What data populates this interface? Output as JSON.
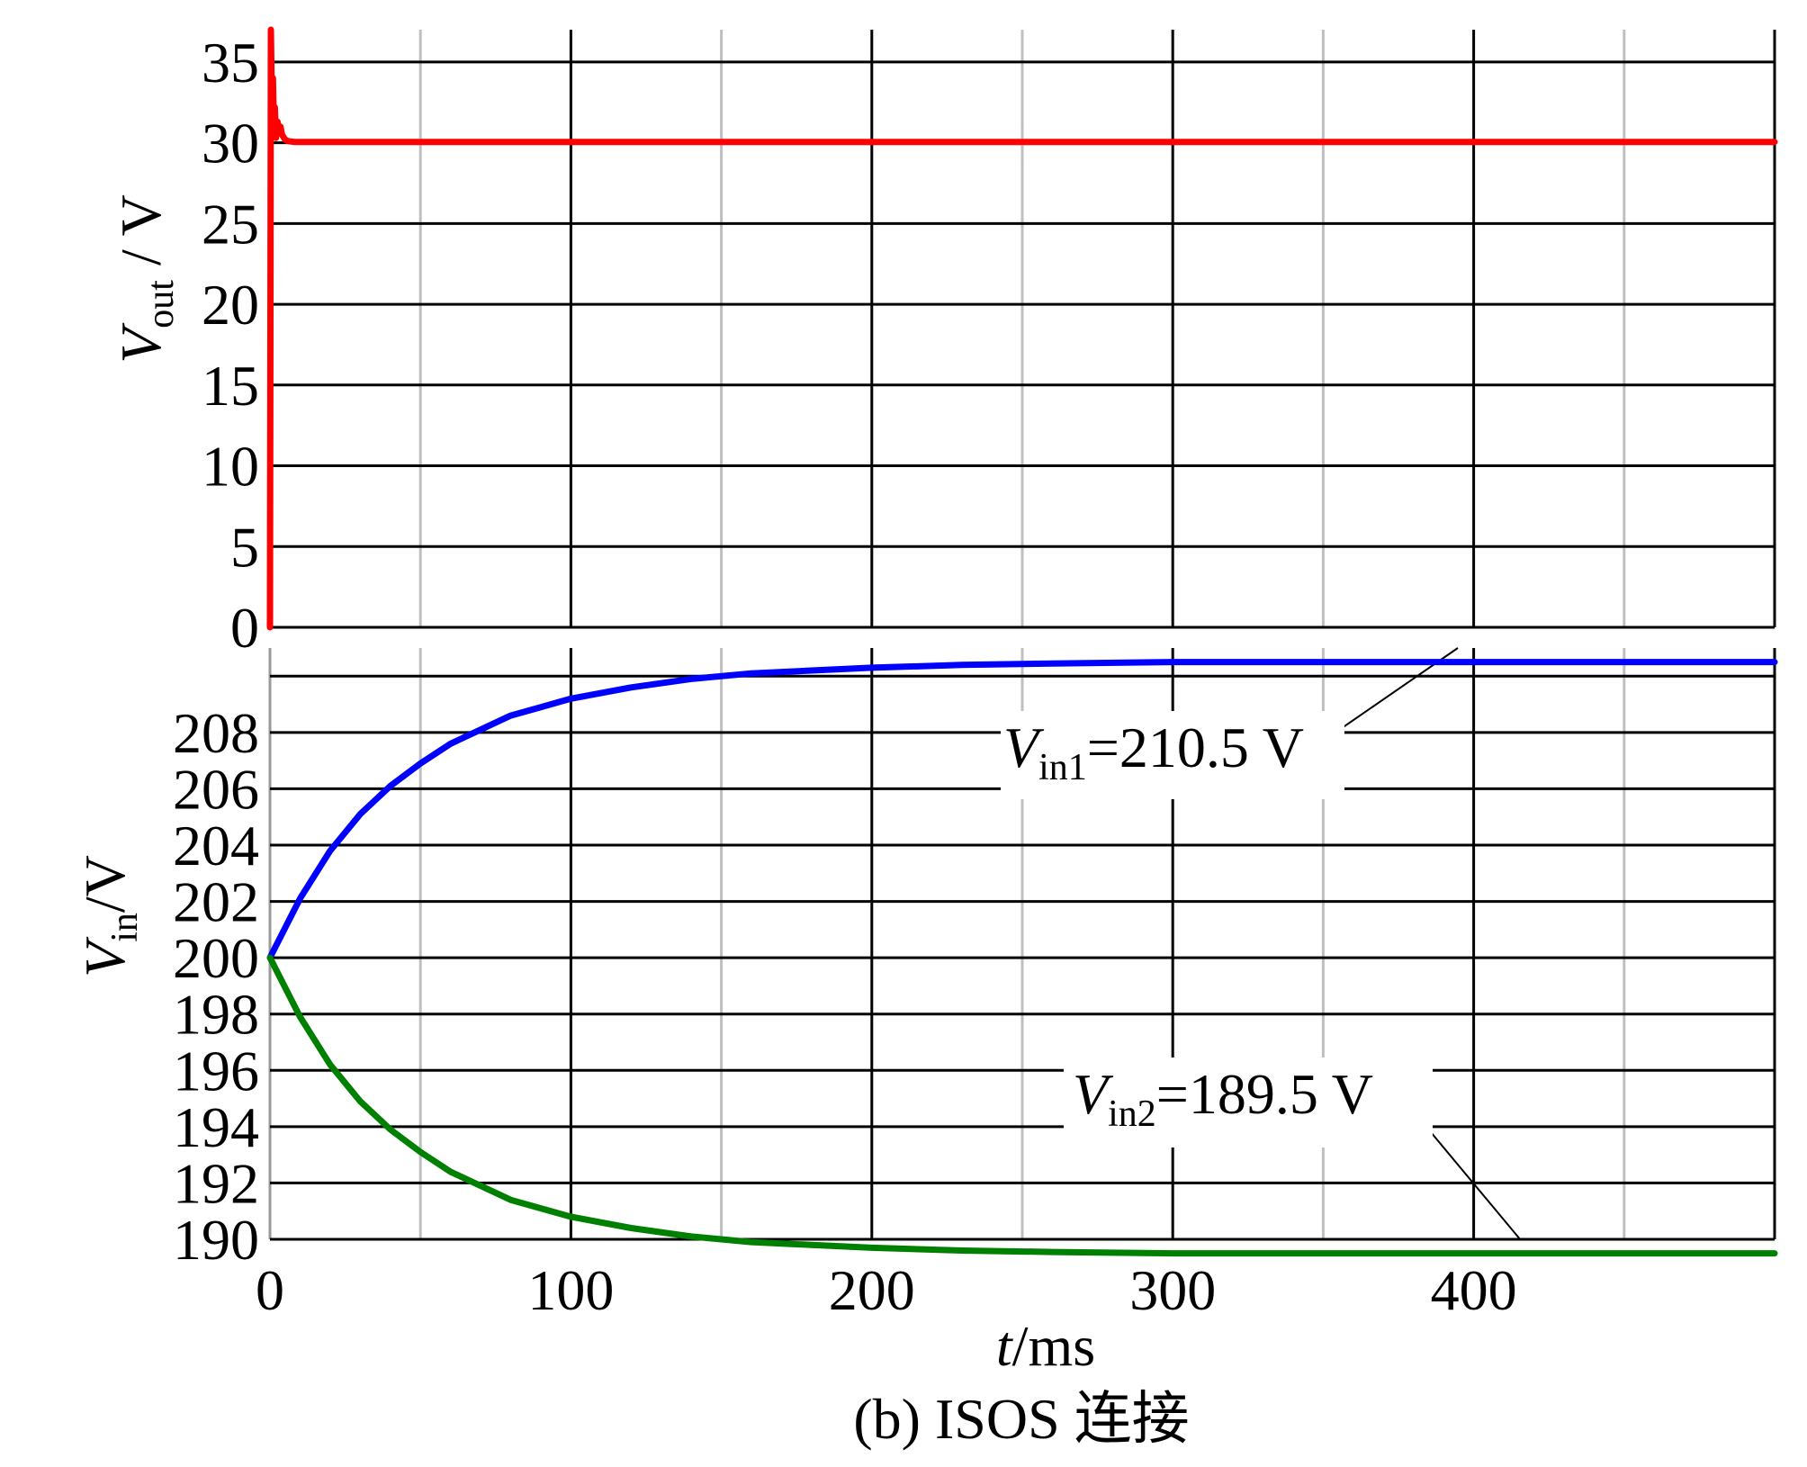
{
  "caption": "(b) ISOS 连接",
  "chart_data": [
    {
      "id": "top",
      "type": "line",
      "ylabel_main": "V",
      "ylabel_sub": "out",
      "ylabel_rest": " / V",
      "xlim": [
        0,
        500
      ],
      "ylim": [
        0,
        37
      ],
      "yticks": [
        0,
        5,
        10,
        15,
        20,
        25,
        30,
        35
      ],
      "grid_major_x": [
        0,
        100,
        200,
        300,
        400,
        500
      ],
      "grid_minor_x": [
        50,
        150,
        250,
        350,
        450
      ],
      "grid": true,
      "series": [
        {
          "color": "#ff0000",
          "x": [
            0,
            0.3,
            0.6,
            1.0,
            1.3,
            1.6,
            2.0,
            2.5,
            3.0,
            3.5,
            4,
            5,
            6,
            8,
            500
          ],
          "y": [
            0,
            37,
            33,
            34,
            31,
            32.2,
            30.3,
            31.3,
            30.8,
            31.0,
            30.5,
            30.2,
            30.1,
            30.05,
            30.05
          ]
        }
      ]
    },
    {
      "id": "bottom",
      "type": "line",
      "ylabel_main": "V",
      "ylabel_sub": "in",
      "ylabel_rest": "/V",
      "xlabel_main": "t",
      "xlabel_rest": "/ms",
      "xlim": [
        0,
        500
      ],
      "ylim": [
        190,
        211
      ],
      "yticks": [
        190,
        192,
        194,
        196,
        198,
        200,
        202,
        204,
        206,
        208
      ],
      "xticks": [
        0,
        100,
        200,
        300,
        400
      ],
      "grid_major_x": [
        0,
        100,
        200,
        300,
        400,
        500
      ],
      "grid_minor_x": [
        50,
        150,
        250,
        350,
        450
      ],
      "grid_major_y": [
        190,
        192,
        194,
        196,
        198,
        200,
        202,
        204,
        206,
        208,
        210
      ],
      "grid": true,
      "series": [
        {
          "color": "#0000ff",
          "x": [
            0,
            10,
            20,
            30,
            40,
            50,
            60,
            70,
            80,
            90,
            100,
            120,
            140,
            160,
            180,
            200,
            230,
            260,
            300,
            350,
            400,
            450,
            500
          ],
          "y": [
            200.0,
            202.1,
            203.8,
            205.1,
            206.1,
            206.9,
            207.6,
            208.1,
            208.6,
            208.9,
            209.2,
            209.6,
            209.9,
            210.1,
            210.2,
            210.3,
            210.4,
            210.45,
            210.5,
            210.5,
            210.5,
            210.5,
            210.5
          ]
        },
        {
          "color": "#008000",
          "x": [
            0,
            10,
            20,
            30,
            40,
            50,
            60,
            70,
            80,
            90,
            100,
            120,
            140,
            160,
            180,
            200,
            230,
            260,
            300,
            350,
            400,
            450,
            500
          ],
          "y": [
            200.0,
            197.9,
            196.2,
            194.9,
            193.9,
            193.1,
            192.4,
            191.9,
            191.4,
            191.1,
            190.8,
            190.4,
            190.1,
            189.9,
            189.8,
            189.7,
            189.6,
            189.55,
            189.5,
            189.5,
            189.5,
            189.5,
            189.5
          ]
        }
      ],
      "annotations": [
        {
          "main": "V",
          "sub": "in1",
          "rest": "=210.5 V"
        },
        {
          "main": "V",
          "sub": "in2",
          "rest": "=189.5 V"
        }
      ]
    }
  ]
}
